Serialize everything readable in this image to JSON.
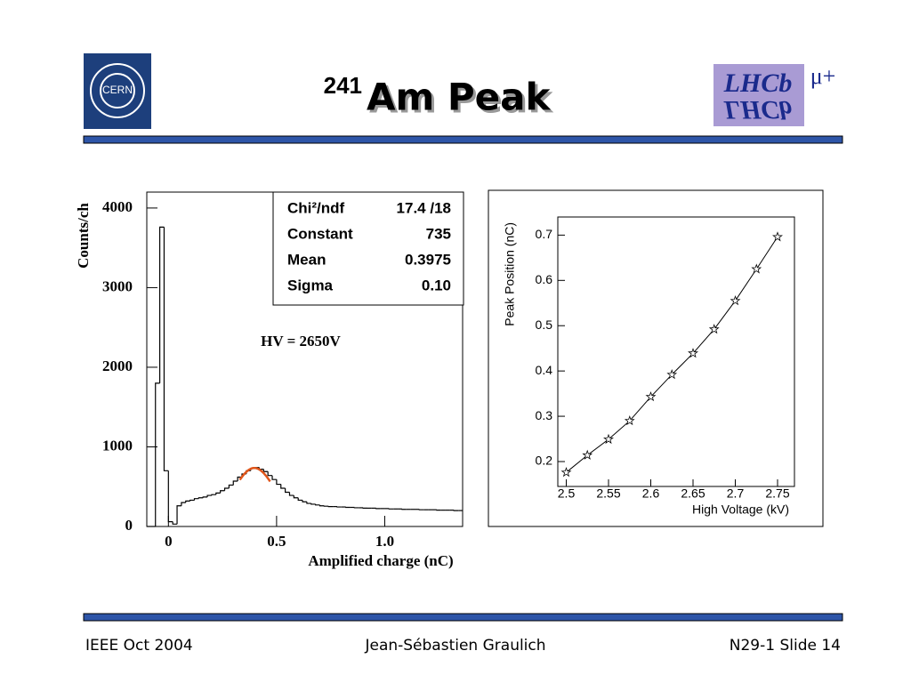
{
  "slide": {
    "title_superscript": "241",
    "title": "Am Peak",
    "logo_left": "CERN",
    "logo_right": "LHCb",
    "logo_right_symbol": "μ+",
    "footer_left": "IEEE Oct 2004",
    "footer_center": "Jean-Sébastien Graulich",
    "footer_right": "N29-1 Slide 14"
  },
  "chart_data": [
    {
      "type": "histogram",
      "ylabel": "Counts/ch",
      "xlabel": "Amplified charge (nC)",
      "annotation": "HV = 2650V",
      "color": "#000000",
      "bins": [
        -0.1,
        -0.08,
        -0.06,
        -0.04,
        -0.02,
        0,
        0.02,
        0.04,
        0.06,
        0.08,
        0.1,
        0.12,
        0.14,
        0.16,
        0.18,
        0.2,
        0.22,
        0.24,
        0.26,
        0.28,
        0.3,
        0.32,
        0.34,
        0.36,
        0.38,
        0.4,
        0.42,
        0.44,
        0.46,
        0.48,
        0.5,
        0.52,
        0.54,
        0.56,
        0.58,
        0.6,
        0.62,
        0.64,
        0.66,
        0.68,
        0.7,
        0.72,
        0.74,
        0.76,
        0.78,
        0.8,
        0.82,
        0.84,
        0.86,
        0.88,
        0.9,
        0.92,
        0.94,
        0.96,
        0.98,
        1,
        1.02,
        1.04,
        1.06,
        1.08,
        1.1,
        1.12,
        1.14,
        1.16,
        1.18,
        1.2,
        1.22,
        1.24,
        1.26,
        1.28,
        1.3,
        1.32,
        1.34,
        1.36
      ],
      "values": [
        0,
        0,
        1800,
        3760,
        700,
        60,
        30,
        260,
        300,
        320,
        330,
        350,
        360,
        370,
        390,
        400,
        420,
        450,
        480,
        520,
        570,
        620,
        660,
        700,
        730,
        740,
        720,
        690,
        640,
        590,
        530,
        480,
        430,
        390,
        360,
        330,
        310,
        290,
        280,
        270,
        260,
        255,
        250,
        250,
        245,
        245,
        240,
        240,
        235,
        235,
        230,
        230,
        230,
        225,
        225,
        225,
        220,
        220,
        220,
        215,
        215,
        215,
        215,
        210,
        210,
        210,
        210,
        205,
        205,
        205,
        205,
        200,
        200
      ],
      "xlim": [
        -0.1,
        1.36
      ],
      "ylim": [
        0,
        4200
      ],
      "xticks": [
        0,
        0.5,
        {
          "value": 1,
          "label": "1.0"
        }
      ],
      "yticks": [
        0,
        1000,
        2000,
        3000,
        4000
      ],
      "stats": [
        {
          "label": "Chi²/ndf",
          "value": "17.4 /18"
        },
        {
          "label": "Constant",
          "value": "735"
        },
        {
          "label": "Mean",
          "value": "0.3975"
        },
        {
          "label": "Sigma",
          "value": "0.10"
        }
      ],
      "fit_range": [
        0.33,
        0.47
      ],
      "fit_color": "#e0561b"
    },
    {
      "type": "line",
      "xlabel": "High Voltage (kV)",
      "ylabel": "Peak Position (nC)",
      "x": [
        2.5,
        2.525,
        2.55,
        2.575,
        2.6,
        2.625,
        2.65,
        2.675,
        2.7,
        2.725,
        2.75
      ],
      "series": [
        {
          "color": "#000000",
          "values": [
            0.176,
            0.214,
            0.249,
            0.29,
            0.343,
            0.392,
            0.439,
            0.492,
            0.555,
            0.625,
            0.696
          ]
        }
      ],
      "xlim": [
        2.49,
        2.77
      ],
      "ylim": [
        0.145,
        0.74
      ],
      "xticks": [
        2.5,
        2.55,
        2.6,
        2.65,
        2.7,
        2.75
      ],
      "yticks": [
        0.2,
        0.3,
        0.4,
        0.5,
        0.6,
        0.7
      ]
    }
  ]
}
